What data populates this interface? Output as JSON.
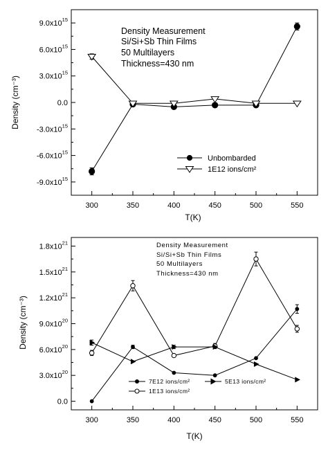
{
  "chart_data": [
    {
      "type": "line",
      "title": "",
      "xlabel": "T(K)",
      "ylabel": "Density (cm⁻³)",
      "xlim": [
        275,
        575
      ],
      "ylim": [
        -1.05e+16,
        1.05e+16
      ],
      "xticks": [
        "300",
        "350",
        "400",
        "450",
        "500",
        "550"
      ],
      "yticks": [
        {
          "value": 9000000000000000.0,
          "mant": "9.0x10",
          "exp": "15"
        },
        {
          "value": 6000000000000000.0,
          "mant": "6.0x10",
          "exp": "15"
        },
        {
          "value": 3000000000000000.0,
          "mant": "3.0x10",
          "exp": "15"
        },
        {
          "value": 0,
          "mant": "0.0",
          "exp": ""
        },
        {
          "value": -3000000000000000.0,
          "mant": "-3.0x10",
          "exp": "15"
        },
        {
          "value": -6000000000000000.0,
          "mant": "-6.0x10",
          "exp": "15"
        },
        {
          "value": -9000000000000000.0,
          "mant": "-9.0x10",
          "exp": "15"
        }
      ],
      "annotation": [
        "Density Measurement",
        "Si/Si+Sb Thin Films",
        "50 Multilayers",
        "Thickness=430 nm"
      ],
      "x": [
        300,
        350,
        400,
        450,
        500,
        550
      ],
      "series": [
        {
          "name": "Unbombarded",
          "marker": "filled-circle",
          "values": [
            -7800000000000000.0,
            -200000000000000.0,
            -500000000000000.0,
            -300000000000000.0,
            -300000000000000.0,
            8600000000000000.0
          ],
          "errors": [
            400000000000000.0,
            0,
            0,
            0,
            0,
            400000000000000.0
          ]
        },
        {
          "name": "1E12 ions/cm²",
          "marker": "open-triangle-down",
          "values": [
            5200000000000000.0,
            -100000000000000.0,
            -100000000000000.0,
            400000000000000.0,
            -100000000000000.0,
            -100000000000000.0
          ],
          "errors": [
            300000000000000.0,
            0,
            0,
            0,
            0,
            0
          ]
        }
      ],
      "legend": "bottom-right"
    },
    {
      "type": "line",
      "title": "",
      "xlabel": "T(K)",
      "ylabel": "Density (cm⁻³)",
      "xlim": [
        275,
        575
      ],
      "ylim": [
        -1e+20,
        1.9e+21
      ],
      "xticks": [
        "300",
        "350",
        "400",
        "450",
        "500",
        "550"
      ],
      "yticks": [
        {
          "value": 1.8e+21,
          "mant": "1.8x10",
          "exp": "21"
        },
        {
          "value": 1.5e+21,
          "mant": "1.5x10",
          "exp": "21"
        },
        {
          "value": 1.2e+21,
          "mant": "1.2x10",
          "exp": "21"
        },
        {
          "value": 9e+20,
          "mant": "9.0x10",
          "exp": "20"
        },
        {
          "value": 6e+20,
          "mant": "6.0x10",
          "exp": "20"
        },
        {
          "value": 3e+20,
          "mant": "3.0x10",
          "exp": "20"
        },
        {
          "value": 0,
          "mant": "0.0",
          "exp": ""
        }
      ],
      "annotation": [
        "Density Measurement",
        "Si/Si+Sb Thin Films",
        "50 Multilayers",
        "Thickness=430 nm"
      ],
      "x": [
        300,
        350,
        400,
        450,
        500,
        550
      ],
      "series": [
        {
          "name": "7E12 ions/cm²",
          "marker": "filled-circle",
          "values": [
            0.0,
            6.3e+20,
            3.3e+20,
            3e+20,
            5e+20,
            1.07e+21
          ],
          "errors": [
            0,
            2e+19,
            0,
            0,
            0,
            5e+19
          ]
        },
        {
          "name": "1E13 ions/cm²",
          "marker": "open-circle",
          "values": [
            5.6e+20,
            1.34e+21,
            5.3e+20,
            6.4e+20,
            1.65e+21,
            8.4e+20
          ],
          "errors": [
            3e+19,
            6e+19,
            0,
            3e+19,
            8e+19,
            4e+19
          ]
        },
        {
          "name": "5E13 ions/cm²",
          "marker": "filled-triangle-right",
          "values": [
            6.8e+20,
            4.6e+20,
            6.3e+20,
            6.3e+20,
            4.3e+20,
            2.5e+20
          ],
          "errors": [
            3e+19,
            0,
            2e+19,
            0,
            0,
            0
          ]
        }
      ],
      "legend": "bottom-left"
    }
  ]
}
